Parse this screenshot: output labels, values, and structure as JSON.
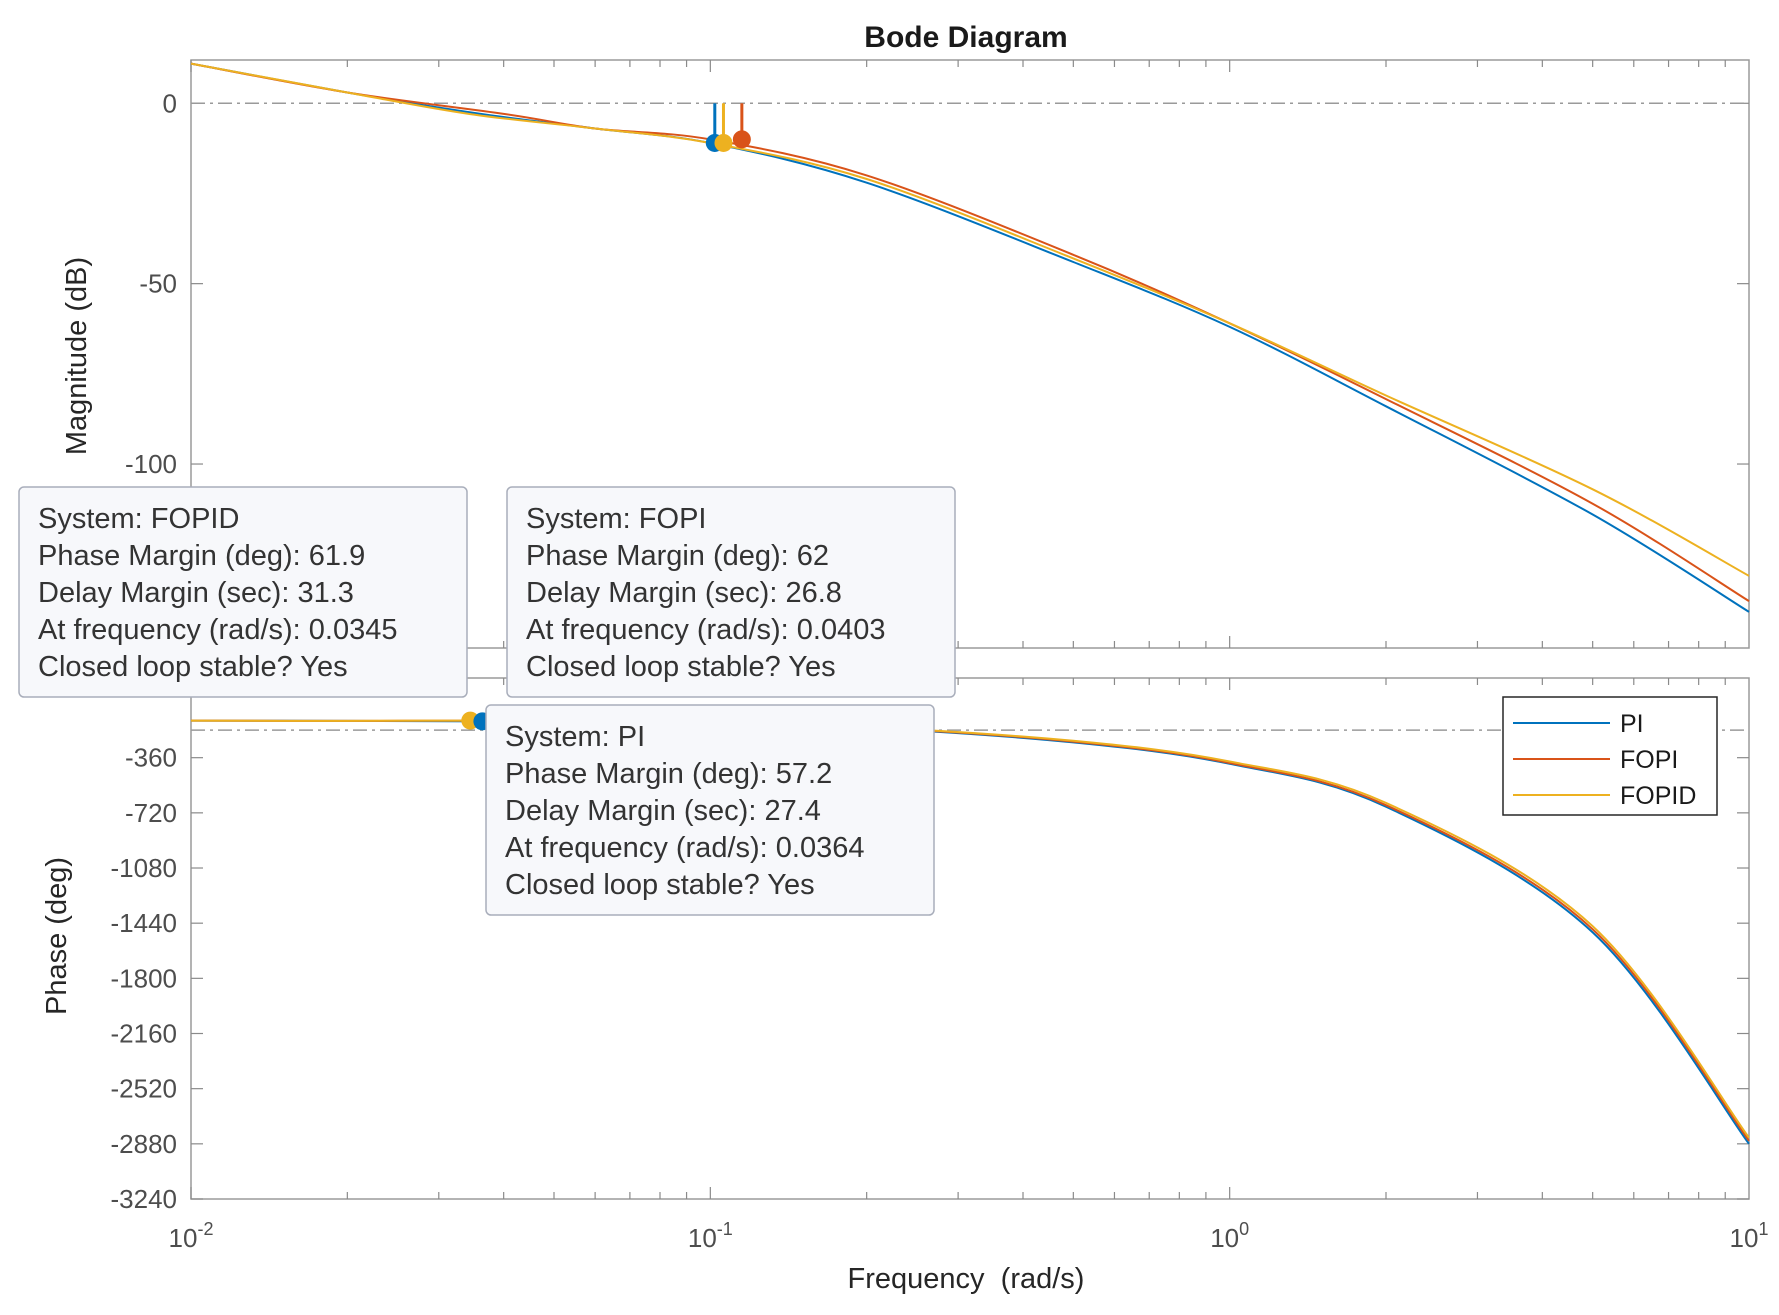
{
  "chart_data": {
    "type": "line",
    "title": "Bode Diagram",
    "xlabel": "Frequency  (rad/s)",
    "xscale": "log",
    "xlim": [
      0.01,
      10
    ],
    "x_ticks": [
      {
        "value": 0.01,
        "base": "10",
        "exp": "-2"
      },
      {
        "value": 0.1,
        "base": "10",
        "exp": "-1"
      },
      {
        "value": 1,
        "base": "10",
        "exp": "0"
      },
      {
        "value": 10,
        "base": "10",
        "exp": "1"
      }
    ],
    "grid": false,
    "colors": {
      "PI": "#0072BD",
      "FOPI": "#D95319",
      "FOPID": "#EDB120"
    },
    "legend": {
      "placement": "right",
      "entries": [
        "PI",
        "FOPI",
        "FOPID"
      ]
    },
    "panels": [
      {
        "name": "magnitude",
        "ylabel": "Magnitude (dB)",
        "ylim": [
          -151,
          12
        ],
        "yticks": [
          0,
          -50,
          -100
        ],
        "reference_line": 0,
        "series": [
          {
            "name": "PI",
            "x": [
              0.01,
              0.02,
              0.0364,
              0.06,
              0.1,
              0.2,
              0.5,
              1,
              2,
              5,
              10
            ],
            "y": [
              11,
              3,
              -3,
              -7,
              -11,
              -22,
              -44,
              -62,
              -84,
              -114,
              -141
            ]
          },
          {
            "name": "FOPI",
            "x": [
              0.01,
              0.02,
              0.0403,
              0.06,
              0.1,
              0.2,
              0.5,
              1,
              2,
              5,
              10
            ],
            "y": [
              11,
              3,
              -3,
              -7,
              -10,
              -20,
              -42,
              -61,
              -82,
              -111,
              -138
            ]
          },
          {
            "name": "FOPID",
            "x": [
              0.01,
              0.02,
              0.0345,
              0.06,
              0.1,
              0.2,
              0.5,
              1,
              2,
              5,
              10
            ],
            "y": [
              11,
              3,
              -3,
              -7,
              -11,
              -21,
              -43,
              -61,
              -81,
              -107,
              -131
            ]
          }
        ],
        "markers": [
          {
            "series": "PI",
            "x": 0.102,
            "y": -11
          },
          {
            "series": "FOPID",
            "x": 0.106,
            "y": -11
          },
          {
            "series": "FOPI",
            "x": 0.115,
            "y": -10
          }
        ]
      },
      {
        "name": "phase",
        "ylabel": "Phase (deg)",
        "ylim": [
          -3240,
          160
        ],
        "yticks": [
          -360,
          -720,
          -1080,
          -1440,
          -1800,
          -2160,
          -2520,
          -2880,
          -3240
        ],
        "reference_line": -180,
        "series": [
          {
            "name": "PI",
            "x": [
              0.01,
              0.02,
              0.0364,
              0.06,
              0.1,
              0.2,
              0.5,
              1,
              2,
              5,
              10
            ],
            "y": [
              -118,
              -120,
              -123,
              -128,
              -138,
              -165,
              -260,
              -400,
              -680,
              -1500,
              -2880
            ]
          },
          {
            "name": "FOPI",
            "x": [
              0.01,
              0.02,
              0.0403,
              0.06,
              0.1,
              0.2,
              0.5,
              1,
              2,
              5,
              10
            ],
            "y": [
              -118,
              -120,
              -118,
              -126,
              -136,
              -162,
              -255,
              -395,
              -670,
              -1480,
              -2860
            ]
          },
          {
            "name": "FOPID",
            "x": [
              0.01,
              0.02,
              0.0345,
              0.06,
              0.1,
              0.2,
              0.5,
              1,
              2,
              5,
              10
            ],
            "y": [
              -118,
              -120,
              -118,
              -125,
              -135,
              -160,
              -250,
              -385,
              -655,
              -1460,
              -2840
            ]
          }
        ],
        "markers": [
          {
            "series": "FOPID",
            "x": 0.0345,
            "y": -118
          },
          {
            "series": "PI",
            "x": 0.0364,
            "y": -123
          },
          {
            "series": "FOPI",
            "x": 0.0403,
            "y": -118
          }
        ]
      }
    ],
    "datatips": [
      {
        "lines": [
          "System: FOPID",
          "Phase Margin (deg): 61.9",
          "Delay Margin (sec): 31.3",
          "At frequency (rad/s): 0.0345",
          "Closed loop stable? Yes"
        ]
      },
      {
        "lines": [
          "System: FOPI",
          "Phase Margin (deg): 62",
          "Delay Margin (sec): 26.8",
          "At frequency (rad/s): 0.0403",
          "Closed loop stable? Yes"
        ]
      },
      {
        "lines": [
          "System: PI",
          "Phase Margin (deg): 57.2",
          "Delay Margin (sec): 27.4",
          "At frequency (rad/s): 0.0364",
          "Closed loop stable? Yes"
        ]
      }
    ]
  }
}
